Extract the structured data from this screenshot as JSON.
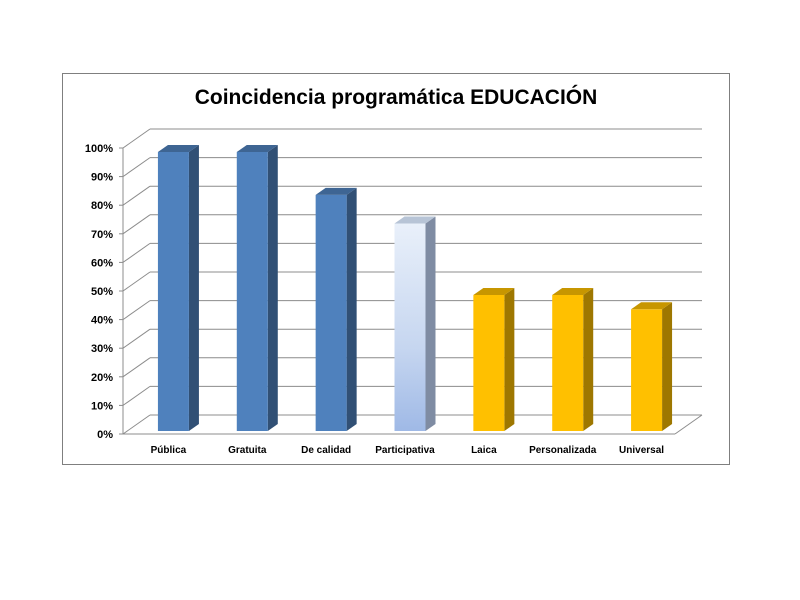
{
  "chart_data": {
    "type": "bar",
    "title": "Coincidencia programática EDUCACIÓN",
    "categories": [
      "Pública",
      "Gratuita",
      "De calidad",
      "Participativa",
      "Laica",
      "Personalizada",
      "Universal"
    ],
    "values": [
      100,
      100,
      85,
      75,
      50,
      50,
      45
    ],
    "unit": "%",
    "ylim": [
      0,
      100
    ],
    "yticks": [
      "0%",
      "10%",
      "20%",
      "30%",
      "40%",
      "50%",
      "60%",
      "70%",
      "80%",
      "90%",
      "100%"
    ],
    "grid": true,
    "style": "3d-column",
    "bar_colors": {
      "Pública": "#4f81bd",
      "Gratuita": "#4f81bd",
      "De calidad": "#4f81bd",
      "Participativa": "#c6d9f1",
      "Laica": "#ffc000",
      "Personalizada": "#ffc000",
      "Universal": "#ffc000"
    }
  }
}
